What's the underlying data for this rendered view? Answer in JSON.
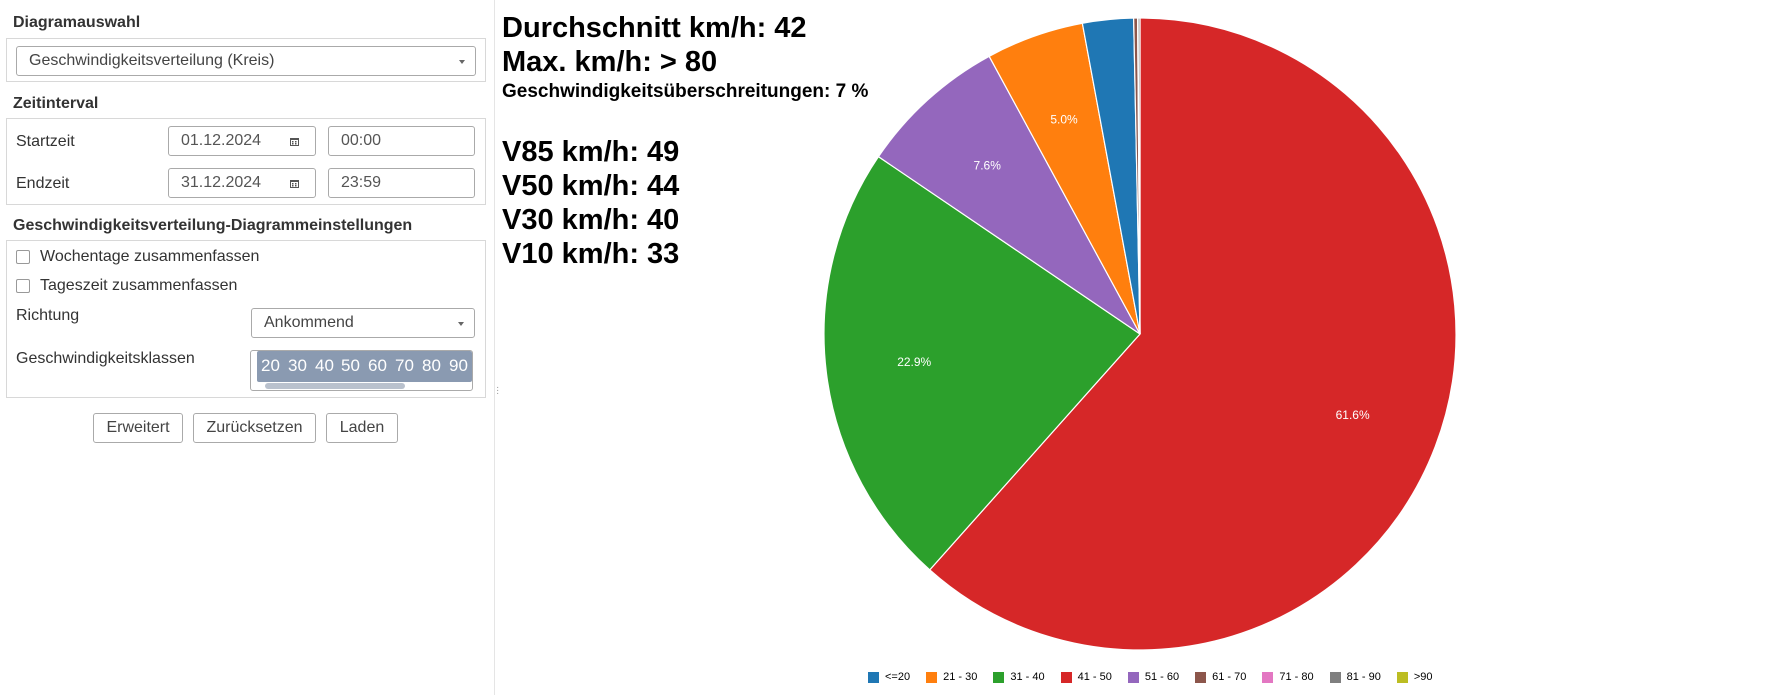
{
  "sidebar": {
    "diagram_section_title": "Diagramauswahl",
    "diagram_select_value": "Geschwindigkeitsverteilung (Kreis)",
    "interval_section_title": "Zeitinterval",
    "start_label": "Startzeit",
    "start_date": "01.12.2024",
    "start_time": "00:00",
    "end_label": "Endzeit",
    "end_date": "31.12.2024",
    "end_time": "23:59",
    "settings_section_title": "Geschwindigkeitsverteilung-Diagrammeinstellungen",
    "weekdays_checkbox_label": "Wochentage zusammenfassen",
    "daytime_checkbox_label": "Tageszeit zusammenfassen",
    "direction_label": "Richtung",
    "direction_value": "Ankommend",
    "speed_classes_label": "Geschwindigkeitsklassen",
    "speed_classes": [
      "20",
      "30",
      "40",
      "50",
      "60",
      "70",
      "80",
      "90"
    ],
    "buttons": {
      "advanced": "Erweitert",
      "reset": "Zurücksetzen",
      "load": "Laden"
    }
  },
  "stats": {
    "average": "Durchschnitt km/h: 42",
    "max": "Max. km/h: > 80",
    "exceedances": "Geschwindigkeitsüberschreitungen: 7 %",
    "v85": "V85 km/h: 49",
    "v50": "V50 km/h: 44",
    "v30": "V30 km/h: 40",
    "v10": "V10 km/h: 33"
  },
  "chart_data": {
    "type": "pie",
    "categories": [
      "<=20",
      "21 - 30",
      "31 - 40",
      "41 - 50",
      "51 - 60",
      "61 - 70",
      "71 - 80",
      "81 - 90",
      ">90"
    ],
    "values": [
      2.6,
      5.0,
      22.9,
      61.6,
      7.6,
      0.2,
      0.02,
      0.1,
      0.0
    ],
    "data_labels": [
      "",
      "5.0%",
      "22.9%",
      "61.6%",
      "7.6%",
      "",
      "",
      "",
      ""
    ],
    "colors": [
      "#1f77b4",
      "#ff7f0e",
      "#2ca02c",
      "#d62728",
      "#9467bd",
      "#8c564b",
      "#e377c2",
      "#7f7f7f",
      "#bcbd22"
    ],
    "legend_placement": "bottom-center",
    "start": "top, clockwise order: 41 - 50 first"
  }
}
